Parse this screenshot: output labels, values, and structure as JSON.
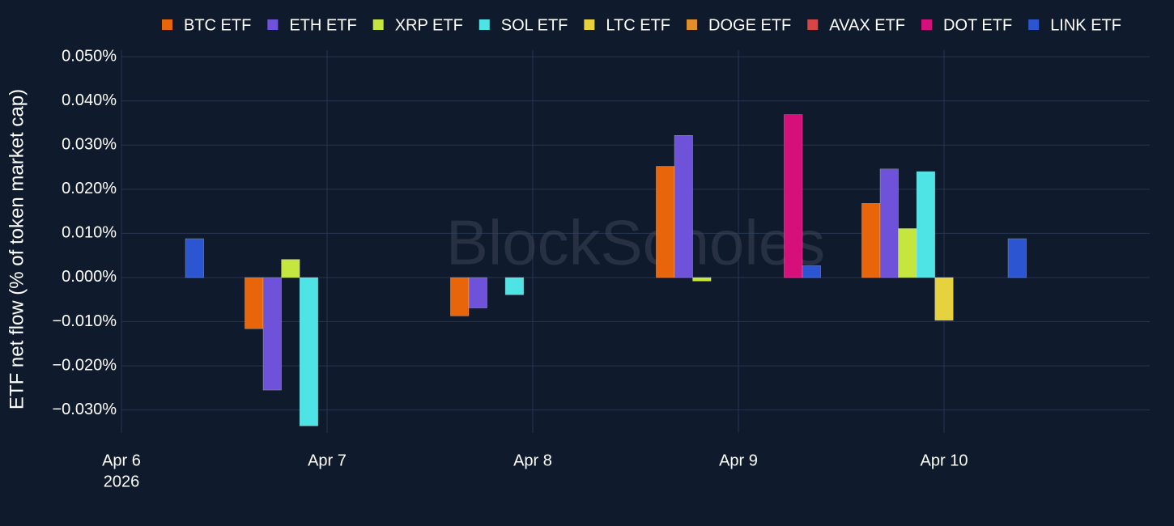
{
  "chart_data": {
    "type": "bar",
    "y_label": "ETF net flow (% of token market cap)",
    "watermark": "BlockScholes",
    "x": [
      "2026-04-06",
      "2026-04-07",
      "2026-04-08",
      "2026-04-09",
      "2026-04-10",
      "2026-04-11"
    ],
    "xlim": [
      "2026-04-06",
      "2026-04-11"
    ],
    "xticks": [
      {
        "value": "2026-04-06",
        "label": "Apr 6"
      },
      {
        "value": "2026-04-07",
        "label": "Apr 7"
      },
      {
        "value": "2026-04-08",
        "label": "Apr 8"
      },
      {
        "value": "2026-04-09",
        "label": "Apr 9"
      },
      {
        "value": "2026-04-10",
        "label": "Apr 10"
      }
    ],
    "xtick_year": "2026",
    "ylim": [
      -0.0352,
      0.0515
    ],
    "yticks": [
      {
        "value": -0.03,
        "label": "−0.030%"
      },
      {
        "value": -0.02,
        "label": "−0.020%"
      },
      {
        "value": -0.01,
        "label": "−0.010%"
      },
      {
        "value": 0,
        "label": "0.000%"
      },
      {
        "value": 0.01,
        "label": "0.010%"
      },
      {
        "value": 0.02,
        "label": "0.020%"
      },
      {
        "value": 0.03,
        "label": "0.030%"
      },
      {
        "value": 0.04,
        "label": "0.040%"
      },
      {
        "value": 0.05,
        "label": "0.050%"
      }
    ],
    "grid": true,
    "legend": "top",
    "series": [
      {
        "name": "BTC ETF",
        "color": "#e8650a",
        "values": [
          0,
          -0.0116,
          -0.0087,
          0.0252,
          0.0168,
          0
        ]
      },
      {
        "name": "ETH ETF",
        "color": "#6e52d9",
        "values": [
          0,
          -0.0255,
          -0.0069,
          0.0322,
          0.0246,
          0
        ]
      },
      {
        "name": "XRP ETF",
        "color": "#c5e63e",
        "values": [
          0,
          0.0041,
          0,
          -0.0008,
          0.0111,
          0
        ]
      },
      {
        "name": "SOL ETF",
        "color": "#4ee4e6",
        "values": [
          0,
          -0.0336,
          -0.0039,
          0,
          0.024,
          0
        ]
      },
      {
        "name": "LTC ETF",
        "color": "#e6d13e",
        "values": [
          0,
          0,
          0,
          0,
          -0.0097,
          0
        ]
      },
      {
        "name": "DOGE ETF",
        "color": "#e0902a",
        "values": [
          0,
          0,
          0,
          0,
          0,
          0
        ]
      },
      {
        "name": "AVAX ETF",
        "color": "#d94545",
        "values": [
          0,
          0,
          0,
          0,
          0,
          0
        ]
      },
      {
        "name": "DOT ETF",
        "color": "#d6107a",
        "values": [
          0,
          0,
          0,
          0.0369,
          0,
          0
        ]
      },
      {
        "name": "LINK ETF",
        "color": "#2b55d1",
        "values": [
          0.0088,
          0,
          0,
          0.0027,
          0.0088,
          0
        ]
      }
    ]
  }
}
